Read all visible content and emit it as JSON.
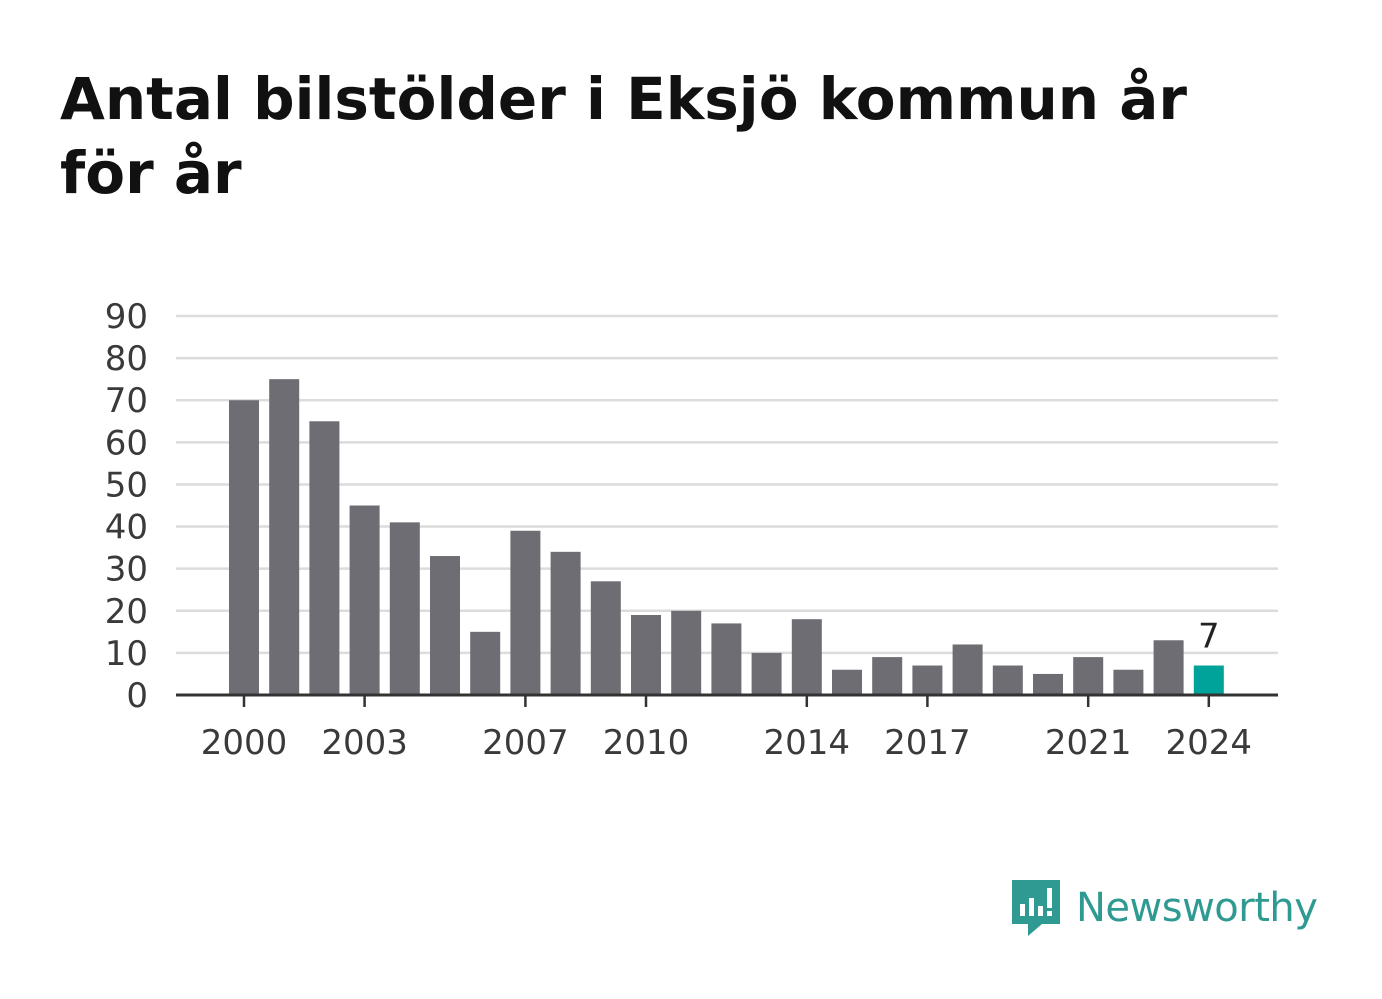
{
  "title": "Antal bilstölder i Eksjö kommun år för år",
  "brand": {
    "name": "Newsworthy",
    "icon": "newsworthy-logo-icon",
    "color": "#2f9a91"
  },
  "colors": {
    "bar": "#6e6d73",
    "highlight": "#00a39a",
    "grid": "#dcdcdc",
    "axis": "#333333"
  },
  "chart_data": {
    "type": "bar",
    "title": "Antal bilstölder i Eksjö kommun år för år",
    "xlabel": "",
    "ylabel": "",
    "categories": [
      "2000",
      "2001",
      "2002",
      "2003",
      "2004",
      "2005",
      "2006",
      "2007",
      "2008",
      "2009",
      "2010",
      "2011",
      "2012",
      "2013",
      "2014",
      "2015",
      "2016",
      "2017",
      "2018",
      "2019",
      "2020",
      "2021",
      "2022",
      "2023",
      "2024"
    ],
    "values": [
      70,
      75,
      65,
      45,
      41,
      33,
      15,
      39,
      34,
      27,
      19,
      20,
      17,
      10,
      18,
      6,
      9,
      7,
      12,
      7,
      5,
      9,
      6,
      13,
      7
    ],
    "x_tick_labels": [
      "2000",
      "2003",
      "2007",
      "2010",
      "2014",
      "2017",
      "2021",
      "2024"
    ],
    "y_ticks": [
      0,
      10,
      20,
      30,
      40,
      50,
      60,
      70,
      80,
      90
    ],
    "ylim": [
      0,
      90
    ],
    "grid": true,
    "highlight": {
      "category": "2024",
      "label": "7"
    }
  }
}
